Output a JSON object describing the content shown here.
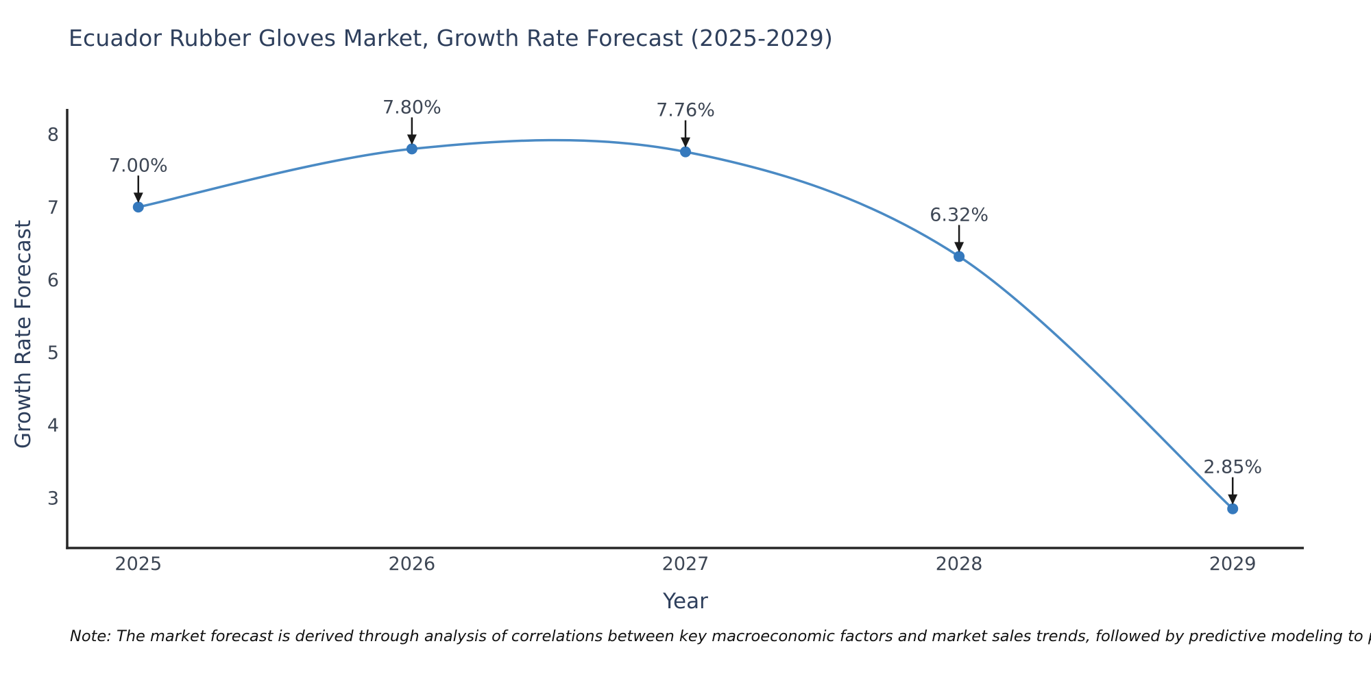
{
  "footer": {
    "note": "Note: The market forecast is derived through analysis of correlations between key macroeconomic factors and market sales trends, followed by predictive modeling to project future sales."
  },
  "chart_data": {
    "type": "line",
    "title": "Ecuador Rubber Gloves Market, Growth Rate Forecast (2025-2029)",
    "x": [
      2025,
      2026,
      2027,
      2028,
      2029
    ],
    "series": [
      {
        "name": "Growth Rate Forecast",
        "values": [
          7.0,
          7.8,
          7.76,
          6.32,
          2.85
        ]
      }
    ],
    "point_labels": [
      "7.00%",
      "7.80%",
      "7.76%",
      "6.32%",
      "2.85%"
    ],
    "xlabel": "Year",
    "ylabel": "Growth Rate Forecast",
    "xtick_labels": [
      "2025",
      "2026",
      "2027",
      "2028",
      "2029"
    ],
    "yticks": [
      3,
      4,
      5,
      6,
      7,
      8
    ],
    "xlim": [
      2024.74,
      2029.26
    ],
    "ylim": [
      2.31,
      8.35
    ],
    "line_shape": "spline",
    "grid": false,
    "legend": "none",
    "colors": {
      "line": "#4a8ac4",
      "marker": "#3579bd",
      "arrow": "#1a1a1a",
      "axis": "#262626",
      "tick_text": "#3d4654",
      "annotation_text": "#3d4654",
      "title_text": "#2e3f5c",
      "note_text": "#111111"
    }
  }
}
